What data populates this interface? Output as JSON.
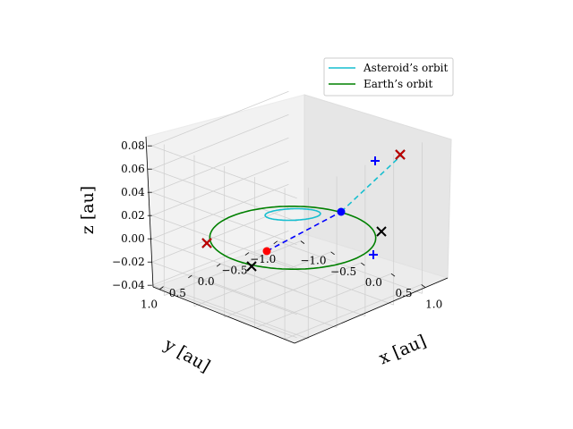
{
  "chart_data": {
    "type": "line3d",
    "view": {
      "elev": 20,
      "azim": -135
    },
    "axes": {
      "x": {
        "label": "x [au]",
        "range": [
          -1.2,
          1.2
        ],
        "ticks": [
          -1.0,
          -0.5,
          0.0,
          0.5,
          1.0
        ],
        "tick_labels": [
          "−1.0",
          "−0.5",
          "0.0",
          "0.5",
          "1.0"
        ]
      },
      "y": {
        "label": "y [au]",
        "range": [
          -1.2,
          1.2
        ],
        "ticks": [
          -1.0,
          -0.5,
          0.0,
          0.5,
          1.0
        ],
        "tick_labels": [
          "−1.0",
          "−0.5",
          "0.0",
          "0.5",
          "1.0"
        ]
      },
      "z": {
        "label": "z [au]",
        "range": [
          -0.045,
          0.085
        ],
        "ticks": [
          -0.04,
          -0.02,
          0.0,
          0.02,
          0.04,
          0.06,
          0.08
        ],
        "tick_labels": [
          "−0.04",
          "−0.02",
          "0.00",
          "0.02",
          "0.04",
          "0.06",
          "0.08"
        ]
      }
    },
    "grid": true,
    "legend": {
      "placement": "top-right",
      "entries": [
        {
          "label": "Asteroid’s orbit",
          "color": "#17becf"
        },
        {
          "label": "Earth’s orbit",
          "color": "#008000"
        }
      ]
    },
    "series": [
      {
        "name": "Asteroid’s orbit",
        "kind": "orbit",
        "color": "#17becf",
        "a": 1.2,
        "e": 0.16,
        "focus_center_offset": [
          -0.13,
          -0.13
        ],
        "inclination_z": 0.075
      },
      {
        "name": "Earth’s orbit",
        "kind": "orbit",
        "color": "#008000",
        "a": 1.0,
        "e": 0.0
      }
    ],
    "markers": {
      "red_dot": {
        "x": -0.84,
        "y": -0.84,
        "z": 0.0,
        "color": "#ff0000"
      },
      "blue_dot": {
        "x": 0.16,
        "y": 0.16,
        "z": 0.0,
        "color": "#0000ff"
      },
      "blue_plus": [
        {
          "x": 1.0,
          "y": -0.2,
          "z": 0.0
        },
        {
          "x": -0.06,
          "y": 1.06,
          "z": 0.0
        }
      ],
      "black_x": [
        {
          "x": -1.0,
          "y": 0.0,
          "z": 0.0
        },
        {
          "x": 0.7,
          "y": -0.7,
          "z": 0.0
        },
        {
          "x": 0.0,
          "y": 1.0,
          "z": 0.0
        }
      ],
      "red_x": [
        {
          "x": 0.0,
          "y": 1.0,
          "z": 0.0
        },
        {
          "x": -0.7,
          "y": 0.7,
          "z": 0.0
        }
      ]
    },
    "dashed_lines": [
      {
        "color": "#0000ff",
        "from": "red_dot",
        "to": "blue_dot"
      },
      {
        "color": "#17becf",
        "from": "blue_dot",
        "to": "asteroid_aphelion"
      }
    ]
  }
}
